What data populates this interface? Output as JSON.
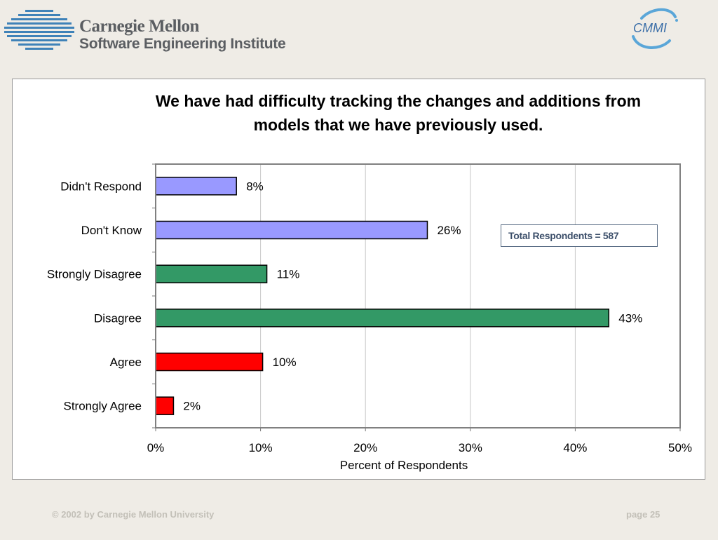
{
  "header": {
    "org_name": "Carnegie Mellon",
    "org_subtitle": "Software Engineering Institute",
    "right_logo_text": "CMMI",
    "logo_icon": "sei-striped-globe-icon"
  },
  "colors": {
    "no_answer": "#9999ff",
    "disagree": "#339966",
    "agree": "#ff0000",
    "logo_blue": "#3f82b8"
  },
  "chart_data": {
    "type": "bar",
    "orientation": "horizontal",
    "title": "We have had difficulty tracking the changes and additions from models that we have previously used.",
    "xlabel": "Percent of Respondents",
    "ylabel": "",
    "xlim": [
      0,
      50
    ],
    "x_ticks": [
      "0%",
      "10%",
      "20%",
      "30%",
      "40%",
      "50%"
    ],
    "grid": "vertical",
    "categories": [
      "Didn't Respond",
      "Don't Know",
      "Strongly Disagree",
      "Disagree",
      "Agree",
      "Strongly Agree"
    ],
    "values": [
      7.7,
      25.9,
      10.6,
      43.2,
      10.2,
      1.7
    ],
    "data_labels": [
      "8%",
      "26%",
      "11%",
      "43%",
      "10%",
      "2%"
    ],
    "bar_colors": [
      "#9999ff",
      "#9999ff",
      "#339966",
      "#339966",
      "#ff0000",
      "#ff0000"
    ],
    "annotation": "Total Respondents = 587"
  },
  "footer": {
    "copyright": "© 2002 by Carnegie Mellon University",
    "page": "page 25"
  }
}
